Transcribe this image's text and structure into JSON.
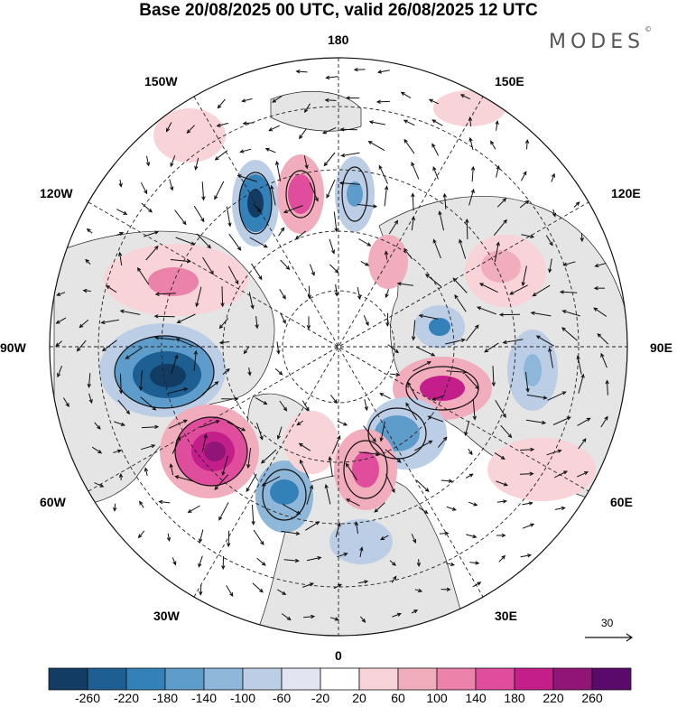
{
  "header": {
    "title": "Base 20/08/2025 00 UTC, valid 26/08/2025 12 UTC",
    "brand": "MODES",
    "brand_mark": "©"
  },
  "map": {
    "projection": "north-polar-stereographic",
    "longitude_labels": {
      "lon_180": "180",
      "lon_150e": "150E",
      "lon_120e": "120E",
      "lon_90e": "90E",
      "lon_60e": "60E",
      "lon_30e": "30E",
      "lon_0": "0",
      "lon_30w": "30W",
      "lon_60w": "60W",
      "lon_90w": "90W",
      "lon_120w": "120W",
      "lon_150w": "150W"
    },
    "vector_reference": {
      "value": "30"
    }
  },
  "colorbar": {
    "colors": [
      "#123c63",
      "#1d5f92",
      "#3480b9",
      "#5e9ccb",
      "#8fb7da",
      "#bccde6",
      "#e2e4f1",
      "#ffffff",
      "#f8d3d7",
      "#f1adbc",
      "#eb82aa",
      "#e04d9c",
      "#c41e8a",
      "#911577",
      "#5a0a6b"
    ],
    "tick_labels": [
      "-260",
      "-220",
      "-180",
      "-140",
      "-100",
      "-60",
      "-20",
      "20",
      "60",
      "100",
      "140",
      "180",
      "220",
      "260"
    ]
  }
}
